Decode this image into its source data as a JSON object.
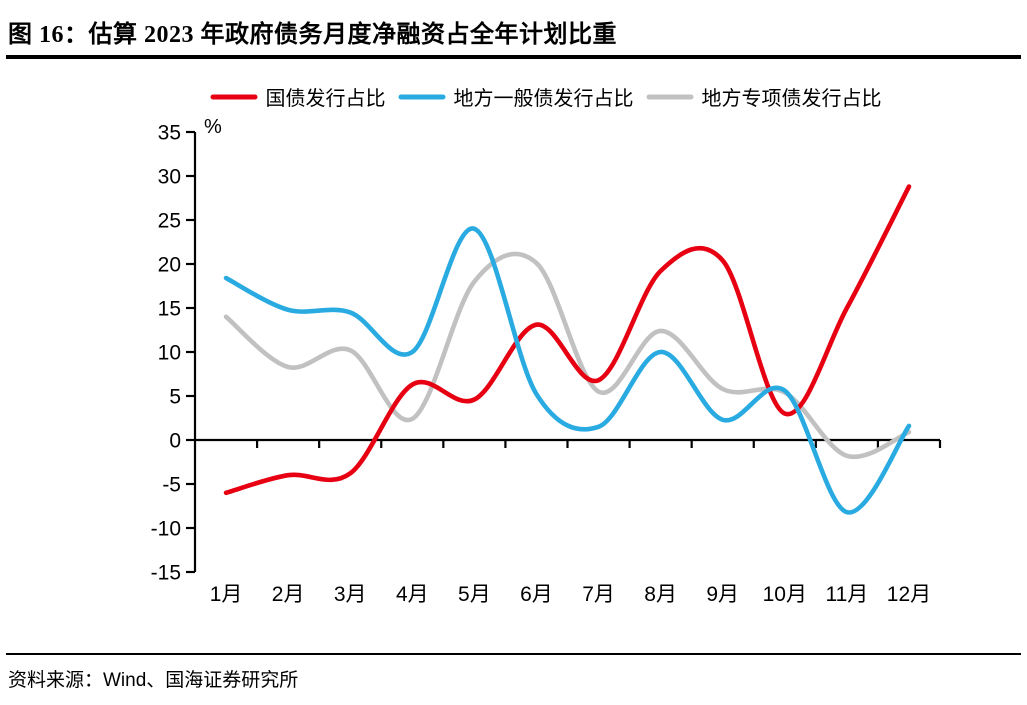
{
  "header": {
    "title": "图 16：估算 2023 年政府债务月度净融资占全年计划比重"
  },
  "footer": {
    "source": "资料来源：Wind、国海证券研究所"
  },
  "chart_data": {
    "type": "line",
    "title": "估算2023年政府债务月度净融资占全年计划比重",
    "unit_label": "%",
    "categories": [
      "1月",
      "2月",
      "3月",
      "4月",
      "5月",
      "6月",
      "7月",
      "8月",
      "9月",
      "10月",
      "11月",
      "12月"
    ],
    "series": [
      {
        "name": "国债发行占比",
        "color": "#e60012",
        "values": [
          -6,
          -4,
          -3.8,
          6.3,
          4.6,
          13.1,
          6.8,
          19.2,
          20.4,
          3,
          15,
          28.8
        ]
      },
      {
        "name": "地方一般债发行占比",
        "color": "#29abe2",
        "values": [
          18.4,
          14.8,
          14.5,
          10,
          24,
          5.2,
          1.5,
          10,
          2.3,
          5.6,
          -8.2,
          1.6
        ]
      },
      {
        "name": "地方专项债发行占比",
        "color": "#c1c1c1",
        "values": [
          14,
          8.3,
          10.2,
          2.4,
          18,
          20.1,
          5.5,
          12.4,
          5.8,
          5.4,
          -1.8,
          0.9
        ]
      }
    ],
    "ylim": [
      -15,
      35
    ],
    "ytick_step": 5,
    "xlabel": "",
    "ylabel": "%",
    "grid": false,
    "legend_position": "top",
    "smoothed_lines": true
  }
}
